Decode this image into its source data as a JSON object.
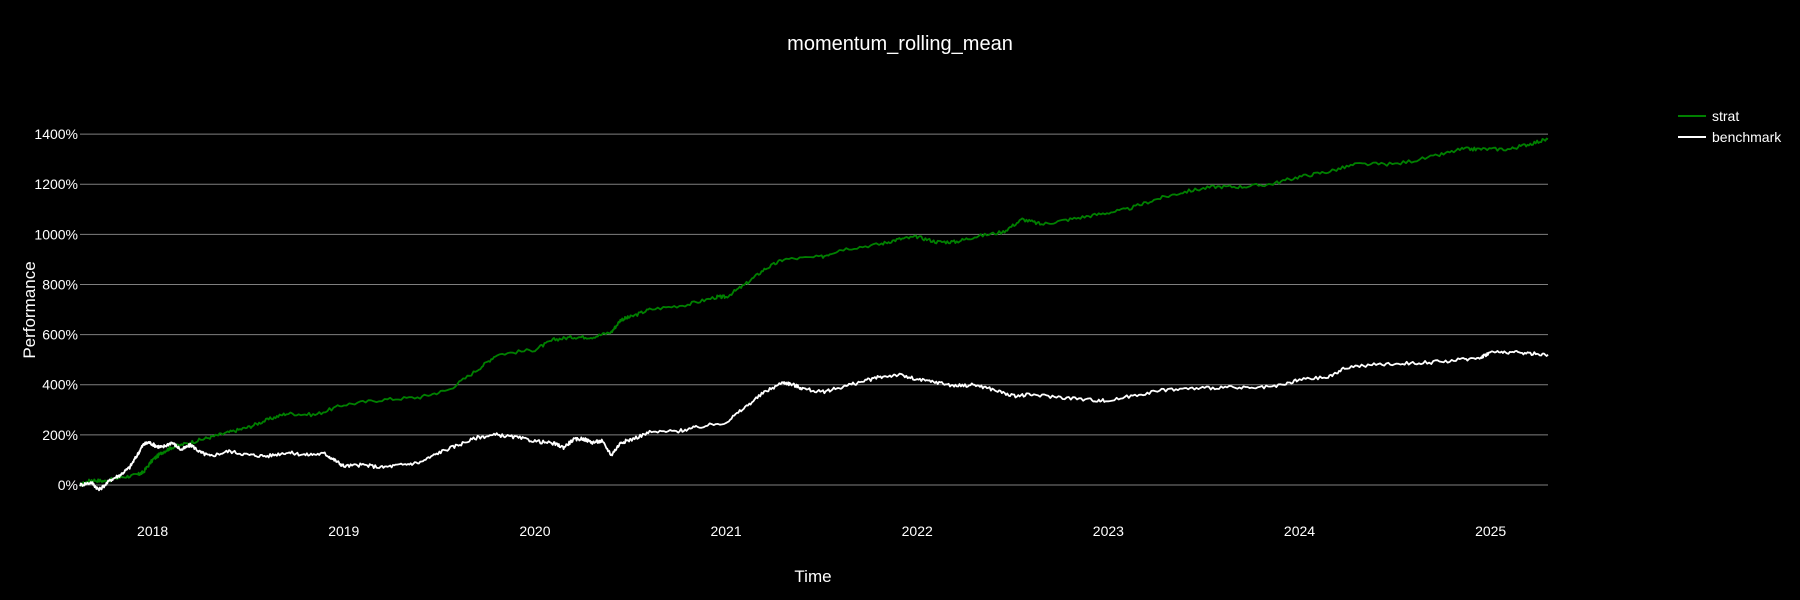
{
  "chart_data": {
    "type": "line",
    "title": "momentum_rolling_mean",
    "xlabel": "Time",
    "ylabel": "Performance",
    "xlim": [
      2017.62,
      2025.3
    ],
    "ylim": [
      -60,
      1540
    ],
    "yticks": [
      0,
      200,
      400,
      600,
      800,
      1000,
      1200,
      1400
    ],
    "ytick_labels": [
      "0%",
      "200%",
      "400%",
      "600%",
      "800%",
      "1000%",
      "1200%",
      "1400%"
    ],
    "xticks": [
      2018,
      2019,
      2020,
      2021,
      2022,
      2023,
      2024,
      2025
    ],
    "xtick_labels": [
      "2018",
      "2019",
      "2020",
      "2021",
      "2022",
      "2023",
      "2024",
      "2025"
    ],
    "grid": "horizontal",
    "legend_position": "top-right",
    "colors": {
      "background": "#000000",
      "grid": "#7f7f7f",
      "text": "#ffffff"
    },
    "series": [
      {
        "name": "strat",
        "color": "#008000",
        "points": [
          [
            2017.62,
            0
          ],
          [
            2017.68,
            20
          ],
          [
            2017.75,
            15
          ],
          [
            2017.83,
            30
          ],
          [
            2017.92,
            40
          ],
          [
            2017.95,
            50
          ],
          [
            2018.0,
            100
          ],
          [
            2018.05,
            130
          ],
          [
            2018.1,
            150
          ],
          [
            2018.2,
            170
          ],
          [
            2018.3,
            190
          ],
          [
            2018.4,
            210
          ],
          [
            2018.5,
            230
          ],
          [
            2018.6,
            260
          ],
          [
            2018.7,
            285
          ],
          [
            2018.85,
            280
          ],
          [
            2019.0,
            320
          ],
          [
            2019.2,
            340
          ],
          [
            2019.4,
            350
          ],
          [
            2019.55,
            380
          ],
          [
            2019.7,
            460
          ],
          [
            2019.8,
            520
          ],
          [
            2020.0,
            540
          ],
          [
            2020.1,
            580
          ],
          [
            2020.2,
            590
          ],
          [
            2020.3,
            590
          ],
          [
            2020.4,
            610
          ],
          [
            2020.45,
            660
          ],
          [
            2020.5,
            670
          ],
          [
            2020.6,
            700
          ],
          [
            2020.8,
            720
          ],
          [
            2020.95,
            750
          ],
          [
            2021.0,
            750
          ],
          [
            2021.1,
            800
          ],
          [
            2021.2,
            860
          ],
          [
            2021.3,
            900
          ],
          [
            2021.5,
            910
          ],
          [
            2021.6,
            940
          ],
          [
            2021.8,
            960
          ],
          [
            2021.9,
            980
          ],
          [
            2022.0,
            990
          ],
          [
            2022.1,
            970
          ],
          [
            2022.2,
            970
          ],
          [
            2022.3,
            990
          ],
          [
            2022.45,
            1010
          ],
          [
            2022.55,
            1060
          ],
          [
            2022.65,
            1040
          ],
          [
            2022.8,
            1060
          ],
          [
            2022.95,
            1080
          ],
          [
            2023.1,
            1100
          ],
          [
            2023.25,
            1140
          ],
          [
            2023.4,
            1170
          ],
          [
            2023.55,
            1190
          ],
          [
            2023.7,
            1190
          ],
          [
            2023.85,
            1200
          ],
          [
            2024.0,
            1230
          ],
          [
            2024.15,
            1250
          ],
          [
            2024.3,
            1280
          ],
          [
            2024.5,
            1280
          ],
          [
            2024.7,
            1310
          ],
          [
            2024.85,
            1340
          ],
          [
            2024.95,
            1340
          ],
          [
            2025.1,
            1340
          ],
          [
            2025.2,
            1360
          ],
          [
            2025.3,
            1380
          ]
        ]
      },
      {
        "name": "benchmark",
        "color": "#ffffff",
        "points": [
          [
            2017.62,
            0
          ],
          [
            2017.68,
            10
          ],
          [
            2017.72,
            -20
          ],
          [
            2017.78,
            20
          ],
          [
            2017.83,
            40
          ],
          [
            2017.88,
            70
          ],
          [
            2017.92,
            120
          ],
          [
            2017.95,
            160
          ],
          [
            2017.98,
            170
          ],
          [
            2018.02,
            155
          ],
          [
            2018.05,
            150
          ],
          [
            2018.1,
            170
          ],
          [
            2018.15,
            140
          ],
          [
            2018.2,
            160
          ],
          [
            2018.25,
            130
          ],
          [
            2018.3,
            115
          ],
          [
            2018.4,
            135
          ],
          [
            2018.5,
            120
          ],
          [
            2018.6,
            115
          ],
          [
            2018.7,
            130
          ],
          [
            2018.8,
            120
          ],
          [
            2018.9,
            125
          ],
          [
            2018.95,
            100
          ],
          [
            2019.0,
            75
          ],
          [
            2019.1,
            80
          ],
          [
            2019.2,
            70
          ],
          [
            2019.3,
            80
          ],
          [
            2019.4,
            90
          ],
          [
            2019.5,
            130
          ],
          [
            2019.6,
            160
          ],
          [
            2019.7,
            190
          ],
          [
            2019.8,
            200
          ],
          [
            2019.9,
            190
          ],
          [
            2020.0,
            175
          ],
          [
            2020.1,
            165
          ],
          [
            2020.15,
            150
          ],
          [
            2020.2,
            180
          ],
          [
            2020.25,
            185
          ],
          [
            2020.3,
            170
          ],
          [
            2020.35,
            175
          ],
          [
            2020.4,
            120
          ],
          [
            2020.45,
            170
          ],
          [
            2020.5,
            180
          ],
          [
            2020.6,
            210
          ],
          [
            2020.75,
            215
          ],
          [
            2020.85,
            230
          ],
          [
            2021.0,
            250
          ],
          [
            2021.1,
            310
          ],
          [
            2021.2,
            370
          ],
          [
            2021.3,
            410
          ],
          [
            2021.35,
            400
          ],
          [
            2021.4,
            385
          ],
          [
            2021.5,
            370
          ],
          [
            2021.6,
            390
          ],
          [
            2021.7,
            410
          ],
          [
            2021.8,
            430
          ],
          [
            2021.9,
            440
          ],
          [
            2022.0,
            420
          ],
          [
            2022.1,
            410
          ],
          [
            2022.2,
            395
          ],
          [
            2022.3,
            400
          ],
          [
            2022.4,
            380
          ],
          [
            2022.5,
            355
          ],
          [
            2022.6,
            360
          ],
          [
            2022.75,
            350
          ],
          [
            2022.9,
            340
          ],
          [
            2023.0,
            335
          ],
          [
            2023.15,
            360
          ],
          [
            2023.3,
            380
          ],
          [
            2023.45,
            385
          ],
          [
            2023.6,
            390
          ],
          [
            2023.75,
            385
          ],
          [
            2023.9,
            395
          ],
          [
            2024.0,
            420
          ],
          [
            2024.15,
            430
          ],
          [
            2024.25,
            470
          ],
          [
            2024.4,
            480
          ],
          [
            2024.55,
            485
          ],
          [
            2024.7,
            490
          ],
          [
            2024.85,
            500
          ],
          [
            2024.95,
            510
          ],
          [
            2025.0,
            530
          ],
          [
            2025.1,
            530
          ],
          [
            2025.2,
            525
          ],
          [
            2025.3,
            520
          ]
        ]
      }
    ]
  }
}
